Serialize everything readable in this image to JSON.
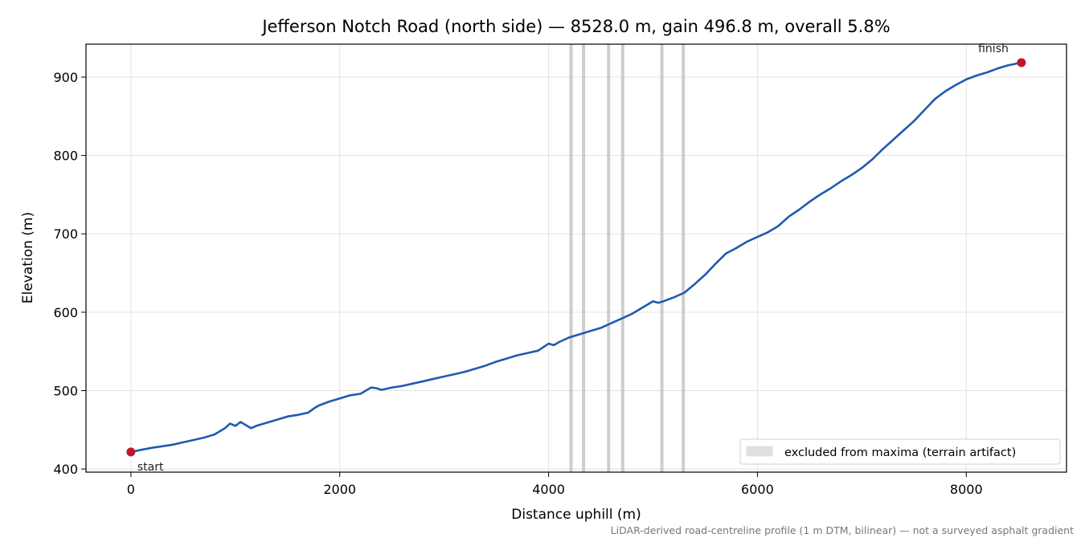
{
  "chart_data": {
    "type": "line",
    "title": "Jefferson Notch Road (north side) — 8528.0 m, gain 496.8 m, overall 5.8%",
    "xlabel": "Distance uphill (m)",
    "ylabel": "Elevation (m)",
    "xlim": [
      -430,
      8960
    ],
    "ylim": [
      396,
      942
    ],
    "xticks": [
      0,
      2000,
      4000,
      6000,
      8000
    ],
    "yticks": [
      400,
      500,
      600,
      700,
      800,
      900
    ],
    "grid": true,
    "series": [
      {
        "color": "#1f5bb0",
        "x": [
          0,
          100,
          200,
          300,
          400,
          500,
          600,
          700,
          800,
          850,
          900,
          950,
          1000,
          1050,
          1100,
          1150,
          1200,
          1300,
          1400,
          1500,
          1600,
          1700,
          1750,
          1800,
          1900,
          2000,
          2100,
          2200,
          2300,
          2350,
          2400,
          2500,
          2600,
          2700,
          2800,
          2900,
          3000,
          3100,
          3200,
          3300,
          3400,
          3500,
          3600,
          3700,
          3800,
          3900,
          4000,
          4050,
          4100,
          4200,
          4300,
          4400,
          4500,
          4600,
          4700,
          4800,
          4900,
          5000,
          5050,
          5100,
          5200,
          5300,
          5400,
          5500,
          5600,
          5700,
          5800,
          5900,
          6000,
          6100,
          6200,
          6300,
          6400,
          6500,
          6600,
          6700,
          6800,
          6900,
          7000,
          7100,
          7200,
          7300,
          7400,
          7500,
          7600,
          7700,
          7800,
          7900,
          8000,
          8100,
          8200,
          8300,
          8400,
          8528
        ],
        "y": [
          421.7,
          424.5,
          427,
          429,
          431,
          434,
          437,
          440,
          444,
          448,
          452,
          458,
          455,
          460,
          456,
          452,
          455,
          459,
          463,
          467,
          469,
          472,
          477,
          481,
          486,
          490,
          494,
          496,
          504,
          503,
          501,
          504,
          506,
          509,
          512,
          515,
          518,
          521,
          524,
          528,
          532,
          537,
          541,
          545,
          548,
          551,
          560,
          558,
          562,
          568,
          572,
          576,
          580,
          586,
          592,
          598,
          606,
          614,
          612,
          614,
          619,
          625,
          636,
          648,
          662,
          675,
          682,
          690,
          696,
          702,
          710,
          722,
          731,
          741,
          750,
          758,
          767,
          775,
          784,
          795,
          808,
          820,
          832,
          844,
          858,
          872,
          882,
          890,
          897,
          902,
          906,
          911,
          915,
          918.5
        ]
      }
    ],
    "excluded_bands_x": [
      4215,
      4335,
      4575,
      4710,
      5085,
      5290
    ],
    "annotations": [
      {
        "label": "start",
        "x": 0,
        "y": 421.7
      },
      {
        "label": "finish",
        "x": 8528,
        "y": 918.5
      }
    ],
    "legend": {
      "label": "excluded from maxima (terrain artifact)",
      "placement": "bottom-right"
    },
    "footnote": "LiDAR-derived road-centreline profile (1 m DTM, bilinear) — not a surveyed asphalt gradient",
    "marker_color": "#c0182a",
    "band_color": "#bdbdbd"
  }
}
